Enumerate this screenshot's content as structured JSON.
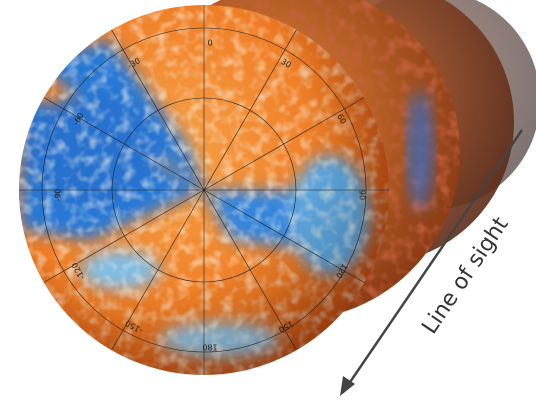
{
  "annotation": "Line of sight",
  "sphere_labels": [
    "0",
    "30",
    "60",
    "90",
    "120",
    "150",
    "180",
    "-150",
    "-120",
    "-90",
    "-60",
    "-30"
  ]
}
